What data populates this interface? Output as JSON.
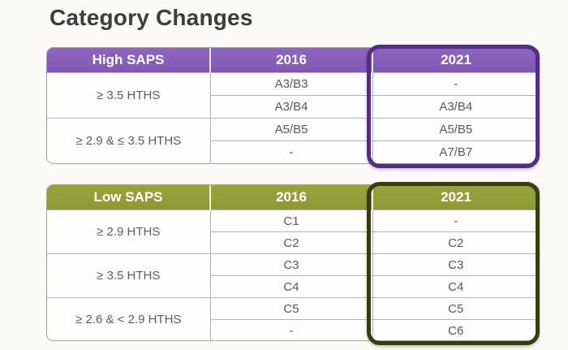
{
  "title": "Category Changes",
  "colors": {
    "page_bg": "#fbfaf7",
    "title_text": "#3d3c3e",
    "header_text": "#ffffff",
    "high_header": "#8b66bf",
    "high_highlight": "#542c85",
    "low_header": "#98a43e",
    "low_highlight": "#383c12",
    "grid_line": "#b5b1b7",
    "cell_text": "#5a585c"
  },
  "tables": [
    {
      "header": {
        "label": "High SAPS",
        "col_2016": "2016",
        "col_2021": "2021"
      },
      "groups": [
        {
          "label": "≥ 3.5 HTHS",
          "rows": [
            {
              "y2016": "A3/B3",
              "y2021": "-"
            },
            {
              "y2016": "A3/B4",
              "y2021": "A3/B4"
            }
          ]
        },
        {
          "label": "≥ 2.9 & ≤ 3.5 HTHS",
          "rows": [
            {
              "y2016": "A5/B5",
              "y2021": "A5/B5"
            },
            {
              "y2016": "-",
              "y2021": "A7/B7"
            }
          ]
        }
      ]
    },
    {
      "header": {
        "label": "Low SAPS",
        "col_2016": "2016",
        "col_2021": "2021"
      },
      "groups": [
        {
          "label": "≥ 2.9 HTHS",
          "rows": [
            {
              "y2016": "C1",
              "y2021": "-"
            },
            {
              "y2016": "C2",
              "y2021": "C2"
            }
          ]
        },
        {
          "label": "≥ 3.5 HTHS",
          "rows": [
            {
              "y2016": "C3",
              "y2021": "C3"
            },
            {
              "y2016": "C4",
              "y2021": "C4"
            }
          ]
        },
        {
          "label": "≥ 2.6 & < 2.9 HTHS",
          "rows": [
            {
              "y2016": "C5",
              "y2021": "C5"
            },
            {
              "y2016": "-",
              "y2021": "C6"
            }
          ]
        }
      ]
    }
  ]
}
